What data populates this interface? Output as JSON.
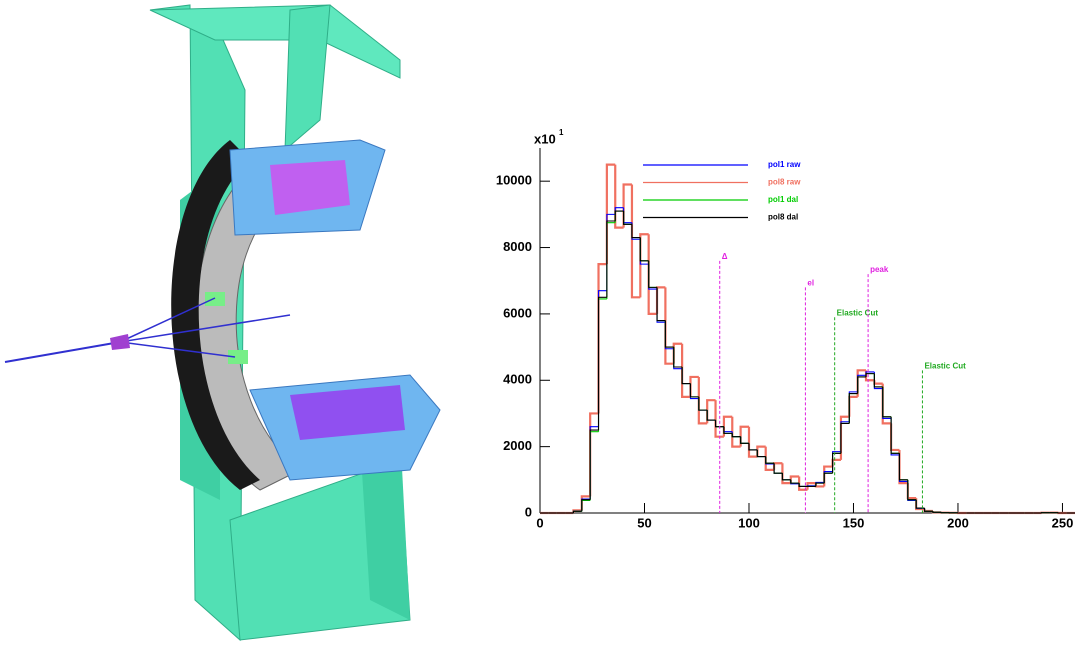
{
  "chart_data": {
    "type": "histogram",
    "y_scale_base": "x10",
    "y_scale_exponent": "1",
    "xlim": [
      0,
      256
    ],
    "ylim": [
      0,
      11000
    ],
    "xticks": [
      0,
      50,
      100,
      150,
      200,
      250
    ],
    "yticks": [
      0,
      2000,
      4000,
      6000,
      8000,
      10000
    ],
    "legend": "upper left",
    "bins": [
      0,
      4,
      8,
      12,
      16,
      20,
      24,
      28,
      32,
      36,
      40,
      44,
      48,
      52,
      56,
      60,
      64,
      68,
      72,
      76,
      80,
      84,
      88,
      92,
      96,
      100,
      104,
      108,
      112,
      116,
      120,
      124,
      128,
      132,
      136,
      140,
      144,
      148,
      152,
      156,
      160,
      164,
      168,
      172,
      176,
      180,
      184,
      188,
      192,
      196,
      200,
      204,
      208,
      212,
      216,
      220,
      224,
      228,
      232,
      236,
      240,
      244,
      248,
      252,
      256
    ],
    "series": [
      {
        "name": "pol1 raw",
        "color": "#0000ff",
        "values": [
          0,
          0,
          0,
          0,
          60,
          420,
          2600,
          6700,
          9000,
          9200,
          8750,
          8250,
          7500,
          6750,
          5750,
          4950,
          4350,
          3900,
          3450,
          3100,
          2800,
          2600,
          2450,
          2300,
          2100,
          1900,
          1700,
          1480,
          1200,
          1000,
          880,
          800,
          820,
          920,
          1250,
          1850,
          2750,
          3650,
          4150,
          4250,
          3750,
          2850,
          1750,
          950,
          380,
          140,
          50,
          20,
          10,
          5,
          0,
          0,
          0,
          0,
          0,
          0,
          0,
          0,
          0,
          0,
          10,
          10,
          0,
          0
        ]
      },
      {
        "name": "pol8 raw",
        "color": "#f07060",
        "values": [
          0,
          0,
          0,
          0,
          80,
          500,
          3000,
          7500,
          10500,
          8600,
          9900,
          6500,
          8400,
          6000,
          6800,
          4500,
          5100,
          3500,
          4100,
          2700,
          3400,
          2300,
          2900,
          2000,
          2600,
          1700,
          2000,
          1300,
          1500,
          900,
          1100,
          700,
          900,
          800,
          1400,
          1600,
          2900,
          3500,
          4300,
          4000,
          3900,
          2700,
          1900,
          900,
          450,
          120,
          60,
          20,
          10,
          5,
          0,
          0,
          0,
          0,
          0,
          0,
          0,
          0,
          0,
          0,
          10,
          10,
          0,
          0
        ]
      },
      {
        "name": "pol1 dal",
        "color": "#00cc00",
        "values": [
          0,
          0,
          0,
          0,
          50,
          380,
          2450,
          6450,
          8750,
          9100,
          8700,
          8300,
          7600,
          6800,
          5800,
          5000,
          4400,
          3900,
          3500,
          3100,
          2800,
          2600,
          2400,
          2300,
          2100,
          1900,
          1700,
          1500,
          1200,
          1000,
          900,
          800,
          800,
          900,
          1200,
          1800,
          2700,
          3600,
          4100,
          4200,
          3800,
          2900,
          1800,
          1000,
          400,
          150,
          50,
          20,
          10,
          5,
          0,
          0,
          0,
          0,
          0,
          0,
          0,
          0,
          0,
          0,
          10,
          10,
          0,
          0
        ]
      },
      {
        "name": "pol8 dal",
        "color": "#000000",
        "values": [
          0,
          0,
          0,
          0,
          50,
          400,
          2500,
          6500,
          8800,
          9100,
          8700,
          8300,
          7600,
          6800,
          5800,
          5000,
          4400,
          3900,
          3500,
          3100,
          2800,
          2600,
          2400,
          2300,
          2100,
          1900,
          1700,
          1500,
          1200,
          1000,
          900,
          800,
          800,
          900,
          1200,
          1800,
          2700,
          3600,
          4100,
          4200,
          3800,
          2900,
          1800,
          1000,
          400,
          150,
          50,
          20,
          10,
          5,
          0,
          0,
          0,
          0,
          0,
          0,
          0,
          0,
          0,
          0,
          10,
          10,
          0,
          0
        ]
      }
    ],
    "annotations": [
      {
        "text": "Δ",
        "x": 86,
        "y": 7600,
        "color": "#e020e0"
      },
      {
        "text": "el",
        "x": 127,
        "y": 6800,
        "color": "#e020e0"
      },
      {
        "text": "Elastic Cut",
        "x": 141,
        "y": 5900,
        "color": "#22aa22"
      },
      {
        "text": "peak",
        "x": 157,
        "y": 7200,
        "color": "#e020e0"
      },
      {
        "text": "Elastic Cut",
        "x": 183,
        "y": 4300,
        "color": "#22aa22"
      }
    ]
  }
}
